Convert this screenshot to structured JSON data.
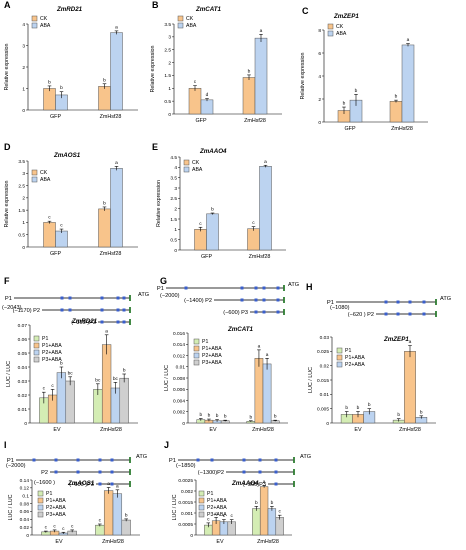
{
  "colors": {
    "ck": "#F8C48B",
    "aba": "#BCD3F0",
    "p1": "#D4EDB4",
    "p1aba": "#F8C48B",
    "p2aba": "#BCD3F0",
    "p3aba": "#CFCFCF",
    "axis": "#000000",
    "motif": "#3A5FCD",
    "promoter_line": "#2E7D32"
  },
  "chart_data": [
    {
      "panel": "A",
      "type": "bar",
      "title": "ZmRD21",
      "ylabel": "Relative expression",
      "ylim": [
        0,
        4
      ],
      "yticks": [
        0,
        1,
        2,
        3,
        4
      ],
      "categories": [
        "GFP",
        "ZmHsf28"
      ],
      "series": [
        {
          "name": "CK",
          "values": [
            1.0,
            1.1
          ],
          "errors": [
            0.12,
            0.12
          ],
          "letters": [
            "b",
            "b"
          ]
        },
        {
          "name": "ABA",
          "values": [
            0.7,
            3.6
          ],
          "errors": [
            0.15,
            0.08
          ],
          "letters": [
            "b",
            "a"
          ]
        }
      ]
    },
    {
      "panel": "B",
      "type": "bar",
      "title": "ZmCAT1",
      "ylabel": "Relative expression",
      "ylim": [
        0,
        3.5
      ],
      "yticks": [
        0,
        0.5,
        1,
        1.5,
        2,
        2.5,
        3,
        3.5
      ],
      "categories": [
        "GFP",
        "ZmHsf28"
      ],
      "series": [
        {
          "name": "CK",
          "values": [
            1.0,
            1.42
          ],
          "errors": [
            0.1,
            0.1
          ],
          "letters": [
            "c",
            "b"
          ]
        },
        {
          "name": "ABA",
          "values": [
            0.55,
            2.95
          ],
          "errors": [
            0.05,
            0.15
          ],
          "letters": [
            "d",
            "a"
          ]
        }
      ]
    },
    {
      "panel": "C",
      "type": "bar",
      "title": "ZmZEP1",
      "ylabel": "Relative expression",
      "ylim": [
        0,
        8
      ],
      "yticks": [
        0,
        2,
        4,
        6,
        8
      ],
      "categories": [
        "GFP",
        "ZmHsf28"
      ],
      "series": [
        {
          "name": "CK",
          "values": [
            1.0,
            1.8
          ],
          "errors": [
            0.3,
            0.1
          ],
          "letters": [
            "b",
            "b"
          ]
        },
        {
          "name": "ABA",
          "values": [
            1.9,
            6.7
          ],
          "errors": [
            0.5,
            0.12
          ],
          "letters": [
            "b",
            "a"
          ]
        }
      ]
    },
    {
      "panel": "D",
      "type": "bar",
      "title": "ZmAOS1",
      "ylabel": "Relative expression",
      "ylim": [
        0,
        3.5
      ],
      "yticks": [
        0,
        0.5,
        1,
        1.5,
        2,
        2.5,
        3,
        3.5
      ],
      "categories": [
        "GFP",
        "ZmHsf28"
      ],
      "series": [
        {
          "name": "CK",
          "values": [
            1.0,
            1.55
          ],
          "errors": [
            0.05,
            0.08
          ],
          "letters": [
            "c",
            "b"
          ]
        },
        {
          "name": "ABA",
          "values": [
            0.65,
            3.2
          ],
          "errors": [
            0.08,
            0.08
          ],
          "letters": [
            "c",
            "a"
          ]
        }
      ]
    },
    {
      "panel": "E",
      "type": "bar",
      "title": "ZmAAO4",
      "ylabel": "Relative expression",
      "ylim": [
        0,
        4.5
      ],
      "yticks": [
        0,
        0.5,
        1,
        1.5,
        2,
        2.5,
        3,
        3.5,
        4,
        4.5
      ],
      "categories": [
        "GFP",
        "ZmHsf28"
      ],
      "series": [
        {
          "name": "CK",
          "values": [
            1.0,
            1.03
          ],
          "errors": [
            0.1,
            0.1
          ],
          "letters": [
            "c",
            "c"
          ]
        },
        {
          "name": "ABA",
          "values": [
            1.75,
            4.05
          ],
          "errors": [
            0.04,
            0.05
          ],
          "letters": [
            "b",
            "a"
          ]
        }
      ]
    },
    {
      "panel": "F",
      "type": "bar",
      "title": "ZmRD21",
      "ylabel": "LUC / LUC",
      "ylim": [
        0,
        0.07
      ],
      "yticks": [
        0,
        0.01,
        0.02,
        0.03,
        0.04,
        0.05,
        0.06,
        0.07
      ],
      "categories": [
        "EV",
        "ZmHsf28"
      ],
      "series": [
        {
          "name": "P1",
          "values": [
            0.018,
            0.024
          ],
          "errors": [
            0.004,
            0.004
          ],
          "letters": [
            "c",
            "bc"
          ]
        },
        {
          "name": "P1+ABA",
          "values": [
            0.02,
            0.056
          ],
          "errors": [
            0.004,
            0.007
          ],
          "letters": [
            "c",
            "a"
          ]
        },
        {
          "name": "P2+ABA",
          "values": [
            0.036,
            0.025
          ],
          "errors": [
            0.004,
            0.004
          ],
          "letters": [
            "b",
            "bc"
          ]
        },
        {
          "name": "P3+ABA",
          "values": [
            0.03,
            0.032
          ],
          "errors": [
            0.003,
            0.003
          ],
          "letters": [
            "bc",
            "b"
          ]
        }
      ]
    },
    {
      "panel": "G",
      "type": "bar",
      "title": "ZmCAT1",
      "ylabel": "LUC / LUC",
      "ylim": [
        0,
        0.016
      ],
      "yticks": [
        0,
        0.002,
        0.004,
        0.006,
        0.008,
        0.01,
        0.012,
        0.014,
        0.016
      ],
      "categories": [
        "EV",
        "ZmHsf28"
      ],
      "series": [
        {
          "name": "P1",
          "values": [
            0.0006,
            0.0003
          ],
          "errors": [
            0.0002,
            0.0001
          ],
          "letters": [
            "b",
            "b"
          ]
        },
        {
          "name": "P1+ABA",
          "values": [
            0.0005,
            0.0115
          ],
          "errors": [
            0.0002,
            0.0015
          ],
          "letters": [
            "b",
            "a"
          ]
        },
        {
          "name": "P2+ABA",
          "values": [
            0.0004,
            0.0105
          ],
          "errors": [
            0.0002,
            0.001
          ],
          "letters": [
            "b",
            "a"
          ]
        },
        {
          "name": "P3+ABA",
          "values": [
            0.0004,
            0.0004
          ],
          "errors": [
            0.0001,
            0.0001
          ],
          "letters": [
            "b",
            "b"
          ]
        }
      ]
    },
    {
      "panel": "H",
      "type": "bar",
      "title": "ZmZEP1",
      "ylabel": "LUC / LUC",
      "ylim": [
        0,
        0.03
      ],
      "yticks": [
        0,
        0.005,
        0.01,
        0.015,
        0.02,
        0.025,
        0.03
      ],
      "categories": [
        "EV",
        "ZmHsf28"
      ],
      "series": [
        {
          "name": "P1",
          "values": [
            0.003,
            0.001
          ],
          "errors": [
            0.001,
            0.0005
          ],
          "letters": [
            "b",
            "b"
          ]
        },
        {
          "name": "P1+ABA",
          "values": [
            0.003,
            0.025
          ],
          "errors": [
            0.001,
            0.002
          ],
          "letters": [
            "b",
            "a"
          ]
        },
        {
          "name": "P2+ABA",
          "values": [
            0.004,
            0.002
          ],
          "errors": [
            0.001,
            0.0005
          ],
          "letters": [
            "b",
            "b"
          ]
        }
      ]
    },
    {
      "panel": "I",
      "type": "bar",
      "title": "ZmAOS1",
      "ylabel": "LUC / LUC",
      "ylim": [
        0,
        0.14
      ],
      "yticks": [
        0,
        0.02,
        0.04,
        0.06,
        0.08,
        0.1,
        0.12,
        0.14
      ],
      "categories": [
        "EV",
        "ZmHsf28"
      ],
      "series": [
        {
          "name": "P1",
          "values": [
            0.008,
            0.025
          ],
          "errors": [
            0.002,
            0.003
          ],
          "letters": [
            "c",
            "c"
          ]
        },
        {
          "name": "P1+ABA",
          "values": [
            0.01,
            0.113
          ],
          "errors": [
            0.003,
            0.008
          ],
          "letters": [
            "c",
            "a"
          ]
        },
        {
          "name": "P2+ABA",
          "values": [
            0.005,
            0.105
          ],
          "errors": [
            0.002,
            0.01
          ],
          "letters": [
            "c",
            "a"
          ]
        },
        {
          "name": "P3+ABA",
          "values": [
            0.01,
            0.038
          ],
          "errors": [
            0.003,
            0.003
          ],
          "letters": [
            "c",
            "b"
          ]
        }
      ]
    },
    {
      "panel": "J",
      "type": "bar",
      "title": "ZmAAO4",
      "ylabel": "LUC / LUC",
      "ylim": [
        0,
        0.0025
      ],
      "yticks": [
        0,
        0.0005,
        0.001,
        0.0015,
        0.002,
        0.0025
      ],
      "categories": [
        "EV",
        "ZmHsf28"
      ],
      "series": [
        {
          "name": "P1",
          "values": [
            0.00045,
            0.0012
          ],
          "errors": [
            0.0001,
            0.0001
          ],
          "letters": [
            "c",
            "b"
          ]
        },
        {
          "name": "P1+ABA",
          "values": [
            0.00065,
            0.0022
          ],
          "errors": [
            0.00015,
            5e-05
          ],
          "letters": [
            "c",
            "a"
          ]
        },
        {
          "name": "P2+ABA",
          "values": [
            0.0006,
            0.0012
          ],
          "errors": [
            0.0001,
            0.0001
          ],
          "letters": [
            "c",
            "b"
          ]
        },
        {
          "name": "P3+ABA",
          "values": [
            0.0006,
            0.0008
          ],
          "errors": [
            0.0001,
            0.0001
          ],
          "letters": [
            "c",
            "c"
          ]
        }
      ]
    }
  ],
  "promoters": [
    {
      "panel": "F",
      "atg": "ATG",
      "labels": [
        "P1",
        "(−2043)",
        "(−1170) P2",
        "(−360 )P3"
      ]
    },
    {
      "panel": "G",
      "atg": "ATG",
      "labels": [
        "P1",
        "(−2000)",
        "(−1400) P2",
        "(−600) P3"
      ]
    },
    {
      "panel": "H",
      "atg": "ATG",
      "labels": [
        "P1",
        "(−1080)",
        "(−620 ) P2"
      ]
    },
    {
      "panel": "I",
      "atg": "ATG",
      "labels": [
        "P1",
        "(−2000)",
        "P2",
        "(−1600 )",
        "(−600 )P3"
      ]
    },
    {
      "panel": "J",
      "atg": "ATG",
      "labels": [
        "P1",
        "(−1850)",
        "(−1300)P2",
        "(−300)P3"
      ]
    }
  ]
}
